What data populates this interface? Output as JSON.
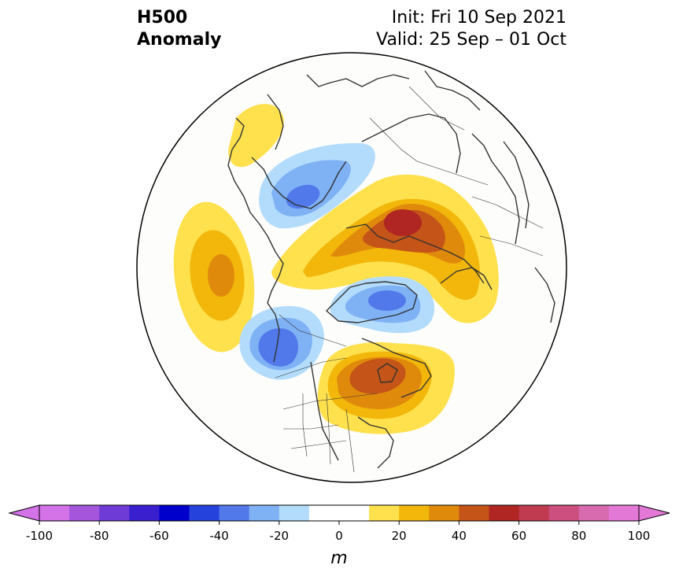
{
  "title": {
    "line1": "H500",
    "line2": "Anomaly",
    "init": "Init: Fri 10 Sep 2021",
    "valid": "Valid: 25 Sep – 01 Oct"
  },
  "colorbar": {
    "units": "m",
    "min": -100,
    "max": 100,
    "step": 10,
    "extend": "both",
    "tick_labels": [
      "-100",
      "-80",
      "-60",
      "-40",
      "-20",
      "0",
      "20",
      "40",
      "60",
      "80",
      "100"
    ],
    "colors": [
      "#d472e8",
      "#a455dc",
      "#6f3bd6",
      "#3a1fcf",
      "#0000cc",
      "#2642dc",
      "#5279ea",
      "#7fb1f5",
      "#b3dcfc",
      "#ffffff",
      "#ffffff",
      "#ffe14d",
      "#f2b70a",
      "#e08a0c",
      "#c45417",
      "#b02622",
      "#c03a50",
      "#cc4f7f",
      "#d86aaf",
      "#e478d6"
    ],
    "under_color": "#d472e8",
    "over_color": "#e478d6"
  },
  "map": {
    "projection": "north-polar-stereographic",
    "background": "#fdfdfb",
    "coastline_color": "#333333",
    "anomaly_centers": [
      {
        "region": "Central North Pacific",
        "sign": "positive",
        "peak_m": 30
      },
      {
        "region": "Bering Sea / Kamchatka",
        "sign": "negative",
        "peak_m": -40
      },
      {
        "region": "Northwestern Pacific",
        "sign": "positive",
        "peak_m": 10
      },
      {
        "region": "Central Siberia / Kara Sea",
        "sign": "positive",
        "peak_m": 50
      },
      {
        "region": "Greenland / Baffin Bay",
        "sign": "negative",
        "peak_m": -30
      },
      {
        "region": "Gulf of Alaska",
        "sign": "negative",
        "peak_m": -40
      },
      {
        "region": "Eastern Canada / Hudson Bay",
        "sign": "positive",
        "peak_m": 40
      }
    ]
  }
}
